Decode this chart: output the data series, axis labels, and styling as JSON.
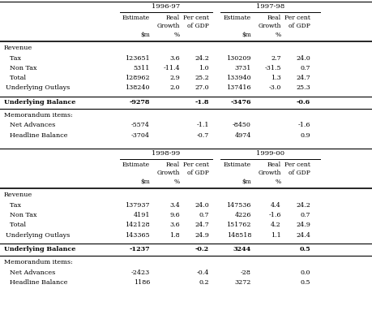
{
  "top_table": {
    "col_groups": [
      "1996-97",
      "1997-98"
    ],
    "sections": [
      {
        "header": "Revenue",
        "rows": [
          [
            "  Tax",
            "123651",
            "3.6",
            "24.2",
            "130209",
            "2.7",
            "24.0"
          ],
          [
            "  Non Tax",
            "5311",
            "-11.4",
            "1.0",
            "3731",
            "-31.5",
            "0.7"
          ],
          [
            "  Total",
            "128962",
            "2.9",
            "25.2",
            "133940",
            "1.3",
            "24.7"
          ],
          [
            "Underlying Outlays",
            "138240",
            "2.0",
            "27.0",
            "137416",
            "-3.0",
            "25.3"
          ]
        ]
      }
    ],
    "balance_row": [
      "Underlying Balance",
      "-9278",
      "",
      "-1.8",
      "-3476",
      "",
      "-0.6"
    ],
    "memo_header": "Memorandum items:",
    "memo_rows": [
      [
        "  Net Advances",
        "-5574",
        "",
        "-1.1",
        "-8450",
        "",
        "-1.6"
      ],
      [
        "  Headline Balance",
        "-3704",
        "",
        "-0.7",
        "4974",
        "",
        "0.9"
      ]
    ]
  },
  "bottom_table": {
    "col_groups": [
      "1998-99",
      "1999-00"
    ],
    "sections": [
      {
        "header": "Revenue",
        "rows": [
          [
            "  Tax",
            "137937",
            "3.4",
            "24.0",
            "147536",
            "4.4",
            "24.2"
          ],
          [
            "  Non Tax",
            "4191",
            "9.6",
            "0.7",
            "4226",
            "-1.6",
            "0.7"
          ],
          [
            "  Total",
            "142128",
            "3.6",
            "24.7",
            "151762",
            "4.2",
            "24.9"
          ],
          [
            "Underlying Outlays",
            "143365",
            "1.8",
            "24.9",
            "148518",
            "1.1",
            "24.4"
          ]
        ]
      }
    ],
    "balance_row": [
      "Underlying Balance",
      "-1237",
      "",
      "-0.2",
      "3244",
      "",
      "0.5"
    ],
    "memo_header": "Memorandum items:",
    "memo_rows": [
      [
        "  Net Advances",
        "-2423",
        "",
        "-0.4",
        "-28",
        "",
        "0.0"
      ],
      [
        "  Headline Balance",
        "1186",
        "",
        "0.2",
        "3272",
        "",
        "0.5"
      ]
    ]
  },
  "bg_color": "#ffffff",
  "text_color": "#000000",
  "font_size": 5.8
}
